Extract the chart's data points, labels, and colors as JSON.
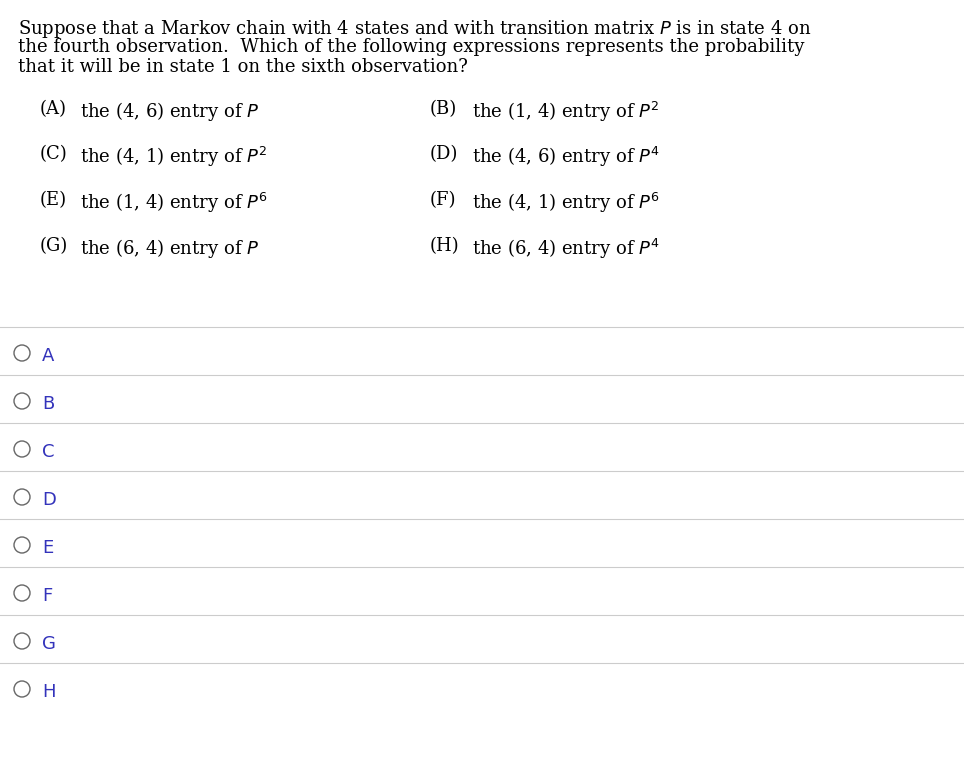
{
  "question_lines": [
    "Suppose that a Markov chain with 4 states and with transition matrix $P$ is in state 4 on",
    "the fourth observation.  Which of the following expressions represents the probability",
    "that it will be in state 1 on the sixth observation?"
  ],
  "options": [
    {
      "label": "(A)",
      "text": "the (4, 6) entry of $P$"
    },
    {
      "label": "(B)",
      "text": "the (1, 4) entry of $P^2$"
    },
    {
      "label": "(C)",
      "text": "the (4, 1) entry of $P^2$"
    },
    {
      "label": "(D)",
      "text": "the (4, 6) entry of $P^4$"
    },
    {
      "label": "(E)",
      "text": "the (1, 4) entry of $P^6$"
    },
    {
      "label": "(F)",
      "text": "the (4, 1) entry of $P^6$"
    },
    {
      "label": "(G)",
      "text": "the (6, 4) entry of $P$"
    },
    {
      "label": "(H)",
      "text": "the (6, 4) entry of $P^4$"
    }
  ],
  "answer_choices": [
    "A",
    "B",
    "C",
    "D",
    "E",
    "F",
    "G",
    "H"
  ],
  "bg_color": "#ffffff",
  "text_color": "#000000",
  "option_label_color": "#3333bb",
  "circle_color": "#666666",
  "line_color": "#cccccc",
  "font_size_question": 13,
  "font_size_options": 13,
  "font_size_answers": 13,
  "fig_width": 9.64,
  "fig_height": 7.6,
  "dpi": 100
}
